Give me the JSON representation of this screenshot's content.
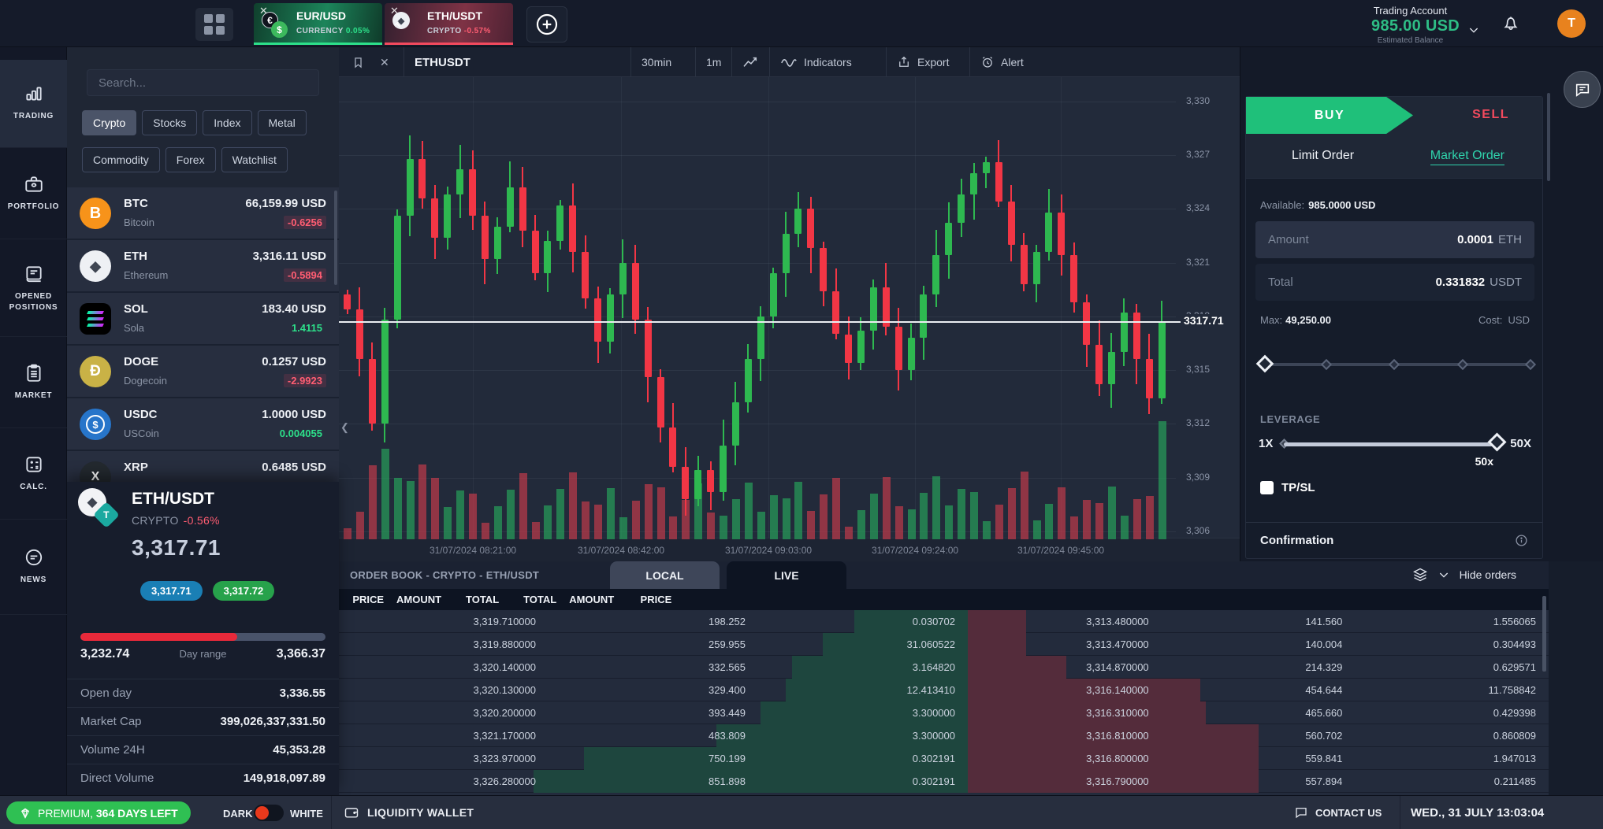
{
  "colors": {
    "accent_green": "#2de08a",
    "accent_red": "#f34a5e",
    "teal_link": "#2fd3ac",
    "buy_green": "#1fc07a",
    "bid_badge_blue": "#1a7fb5",
    "ask_badge_green": "#27a24b",
    "premium_green": "#2fc053",
    "avatar_orange": "#e8821e",
    "toggle_red": "#e8391c",
    "candle_green": "#2eb850",
    "candle_red": "#f23645",
    "depth_green": "#1e463e",
    "depth_red": "#542c3b",
    "balance_green": "#2ebd85",
    "day_range_red": "#e8293a"
  },
  "top_bar": {
    "instrument_tabs": [
      {
        "symbol": "EUR/USD",
        "category": "CURRENCY",
        "change": "0.05%",
        "direction": "up"
      },
      {
        "symbol": "ETH/USDT",
        "category": "CRYPTO",
        "change": "-0.57%",
        "direction": "down"
      }
    ],
    "account": {
      "title": "Trading Account",
      "balance": "985.00 USD",
      "subtitle": "Estimated Balance"
    },
    "avatar_letter": "T"
  },
  "sidebar": {
    "items": [
      {
        "label": "TRADING",
        "active": true
      },
      {
        "label": "PORTFOLIO",
        "active": false
      },
      {
        "label": "OPENED POSITIONS",
        "active": false
      },
      {
        "label": "MARKET",
        "active": false
      },
      {
        "label": "CALC.",
        "active": false
      },
      {
        "label": "NEWS",
        "active": false
      }
    ]
  },
  "watchlist": {
    "search_placeholder": "Search...",
    "filters_row1": [
      {
        "label": "Crypto",
        "active": true
      },
      {
        "label": "Stocks",
        "active": false
      },
      {
        "label": "Index",
        "active": false
      },
      {
        "label": "Metal",
        "active": false
      }
    ],
    "filters_row2": [
      {
        "label": "Commodity",
        "active": false
      },
      {
        "label": "Forex",
        "active": false
      },
      {
        "label": "Watchlist",
        "active": false
      }
    ],
    "assets": [
      {
        "icon": "btc",
        "symbol": "BTC",
        "name": "Bitcoin",
        "price": "66,159.99 USD",
        "change": "-0.6256",
        "direction": "down"
      },
      {
        "icon": "eth",
        "symbol": "ETH",
        "name": "Ethereum",
        "price": "3,316.11 USD",
        "change": "-0.5894",
        "direction": "down"
      },
      {
        "icon": "sol",
        "symbol": "SOL",
        "name": "Sola",
        "price": "183.40 USD",
        "change": "1.4115",
        "direction": "up"
      },
      {
        "icon": "doge",
        "symbol": "DOGE",
        "name": "Dogecoin",
        "price": "0.1257 USD",
        "change": "-2.9923",
        "direction": "down"
      },
      {
        "icon": "usdc",
        "symbol": "USDC",
        "name": "USCoin",
        "price": "1.0000 USD",
        "change": "0.004055",
        "direction": "up"
      },
      {
        "icon": "xrp",
        "symbol": "XRP",
        "name": "",
        "price": "0.6485 USD",
        "change": "",
        "direction": "none"
      }
    ]
  },
  "instrument": {
    "pair": "ETH/USDT",
    "category": "CRYPTO",
    "change": "-0.56%",
    "price": "3,317.71",
    "bid": "3,317.71",
    "ask": "3,317.72",
    "day_low": "3,232.74",
    "day_range_label": "Day range",
    "day_high": "3,366.37",
    "day_range_fill_pct": 64,
    "stats": [
      {
        "label": "Open day",
        "value": "3,336.55"
      },
      {
        "label": "Market Cap",
        "value": "399,026,337,331.50"
      },
      {
        "label": "Volume 24H",
        "value": "45,353.28"
      },
      {
        "label": "Direct Volume",
        "value": "149,918,097.89"
      }
    ]
  },
  "chart": {
    "symbol": "ETHUSDT",
    "interval_1": "30min",
    "interval_2": "1m",
    "indicators_label": "Indicators",
    "export_label": "Export",
    "alert_label": "Alert"
  },
  "chart_data": {
    "type": "candlestick",
    "symbol": "ETHUSDT",
    "interval": "30min",
    "current_price": "3317.71",
    "current_price_value": 3317.71,
    "ylim": [
      3303,
      3331
    ],
    "y_axis_values": [
      3330,
      3327,
      3324,
      3321,
      3318,
      3315,
      3312,
      3309,
      3306
    ],
    "y_axis_labels": [
      "3,330",
      "3,327",
      "3,324",
      "3,321",
      "3,318",
      "3,315",
      "3,312",
      "3,309",
      "3,306"
    ],
    "x_timestamps": [
      "31/07/2024 08:21:00",
      "31/07/2024 08:42:00",
      "31/07/2024 09:03:00",
      "31/07/2024 09:24:00",
      "31/07/2024 09:45:00"
    ],
    "open_first": 3319.2,
    "closes": [
      3318.4,
      3315.6,
      3312.0,
      3317.8,
      3323.6,
      3326.8,
      3324.6,
      3322.4,
      3324.8,
      3326.2,
      3323.6,
      3321.2,
      3323.0,
      3325.2,
      3322.8,
      3320.4,
      3322.2,
      3324.2,
      3321.6,
      3319.0,
      3316.6,
      3319.2,
      3321.0,
      3317.8,
      3314.6,
      3311.8,
      3309.6,
      3307.8,
      3309.4,
      3308.2,
      3310.8,
      3313.2,
      3315.6,
      3318.0,
      3320.4,
      3322.6,
      3324.0,
      3321.8,
      3319.4,
      3317.0,
      3315.4,
      3317.2,
      3319.6,
      3317.4,
      3315.0,
      3316.8,
      3319.2,
      3321.4,
      3323.2,
      3324.8,
      3326.0,
      3326.6,
      3324.4,
      3322.0,
      3319.8,
      3321.6,
      3323.8,
      3321.4,
      3318.8,
      3316.4,
      3314.2,
      3316.0,
      3318.2,
      3315.6,
      3313.4,
      3317.7
    ]
  },
  "order_panel": {
    "buy_label": "BUY",
    "sell_label": "SELL",
    "limit_label": "Limit Order",
    "market_label": "Market Order",
    "available_label": "Available:",
    "available_value": "985.0000 USD",
    "amount_label": "Amount",
    "amount_value": "0.0001",
    "amount_unit": "ETH",
    "total_label": "Total",
    "total_value": "0.331832",
    "total_unit": "USDT",
    "max_label": "Max:",
    "max_value": "49,250.00",
    "cost_label": "Cost:",
    "cost_unit": "USD",
    "leverage_label": "LEVERAGE",
    "leverage_min": "1X",
    "leverage_max": "50X",
    "leverage_current": "50x",
    "tpsl_label": "TP/SL",
    "confirmation_label": "Confirmation"
  },
  "order_book": {
    "title": "ORDER BOOK - CRYPTO - ETH/USDT",
    "tabs": [
      {
        "label": "LOCAL",
        "active": false
      },
      {
        "label": "LIVE",
        "active": true
      }
    ],
    "hide_orders_label": "Hide orders",
    "headers_left": [
      "PRICE",
      "AMOUNT",
      "TOTAL"
    ],
    "headers_right": [
      "TOTAL",
      "AMOUNT",
      "PRICE"
    ],
    "asks": [
      {
        "col1": "3,319.710000",
        "col2": "198.252",
        "col3": "0.030702",
        "depth": 18
      },
      {
        "col1": "3,319.880000",
        "col2": "259.955",
        "col3": "31.060522",
        "depth": 23
      },
      {
        "col1": "3,320.140000",
        "col2": "332.565",
        "col3": "3.164820",
        "depth": 28
      },
      {
        "col1": "3,320.130000",
        "col2": "329.400",
        "col3": "12.413410",
        "depth": 29
      },
      {
        "col1": "3,320.200000",
        "col2": "393.449",
        "col3": "3.300000",
        "depth": 33
      },
      {
        "col1": "3,321.170000",
        "col2": "483.809",
        "col3": "3.300000",
        "depth": 40
      },
      {
        "col1": "3,323.970000",
        "col2": "750.199",
        "col3": "0.302191",
        "depth": 61
      },
      {
        "col1": "3,326.280000",
        "col2": "851.898",
        "col3": "0.302191",
        "depth": 69
      }
    ],
    "bids": [
      {
        "col1": "3,313.480000",
        "col2": "141.560",
        "col3": "1.556065",
        "depth": 10
      },
      {
        "col1": "3,313.470000",
        "col2": "140.004",
        "col3": "0.304493",
        "depth": 10
      },
      {
        "col1": "3,314.870000",
        "col2": "214.329",
        "col3": "0.629571",
        "depth": 17
      },
      {
        "col1": "3,316.140000",
        "col2": "454.644",
        "col3": "11.758842",
        "depth": 40
      },
      {
        "col1": "3,316.310000",
        "col2": "465.660",
        "col3": "0.429398",
        "depth": 41
      },
      {
        "col1": "3,316.810000",
        "col2": "560.702",
        "col3": "0.860809",
        "depth": 50
      },
      {
        "col1": "3,316.800000",
        "col2": "559.841",
        "col3": "1.947013",
        "depth": 50
      },
      {
        "col1": "3,316.790000",
        "col2": "557.894",
        "col3": "0.211485",
        "depth": 50
      }
    ]
  },
  "status_bar": {
    "premium_prefix": "PREMIUM,",
    "premium_days": "364 DAYS LEFT",
    "dark_label": "DARK",
    "white_label": "WHITE",
    "wallet_label": "LIQUIDITY WALLET",
    "contact_label": "CONTACT US",
    "datetime": "WED., 31 JULY 13:03:04"
  }
}
